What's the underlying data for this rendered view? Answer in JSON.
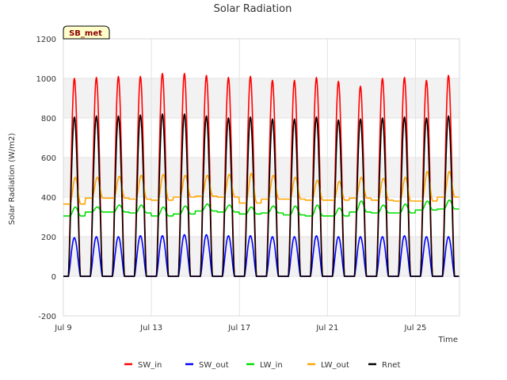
{
  "chart_data": {
    "type": "line",
    "title": "Solar Radiation",
    "xlabel": "Time",
    "ylabel": "Solar Radiation (W/m2)",
    "badge": "SB_met",
    "x_unit": "day of July",
    "xlim": [
      9.0,
      27.0
    ],
    "ylim": [
      -200,
      1200
    ],
    "yticks": [
      -200,
      0,
      200,
      400,
      600,
      800,
      1000,
      1200
    ],
    "xticks": [
      {
        "value": 9,
        "label": "Jul 9"
      },
      {
        "value": 13,
        "label": "Jul 13"
      },
      {
        "value": 17,
        "label": "Jul 17"
      },
      {
        "value": 21,
        "label": "Jul 21"
      },
      {
        "value": 25,
        "label": "Jul 25"
      }
    ],
    "grid": true,
    "background_bands": true,
    "legend_position": "bottom",
    "days": [
      "Jul 9",
      "Jul 10",
      "Jul 11",
      "Jul 12",
      "Jul 13",
      "Jul 14",
      "Jul 15",
      "Jul 16",
      "Jul 17",
      "Jul 18",
      "Jul 19",
      "Jul 20",
      "Jul 21",
      "Jul 22",
      "Jul 23",
      "Jul 24",
      "Jul 25",
      "Jul 26"
    ],
    "diurnal_pattern": {
      "sunrise_hour": 5.5,
      "sunset_hour": 18.5,
      "solar_noon_hour": 12.0,
      "night_value": 0
    },
    "series": [
      {
        "name": "SW_in",
        "color": "#ff0000",
        "kind": "diurnal",
        "daily_peak": [
          1000,
          1005,
          1010,
          1010,
          1025,
          1025,
          1015,
          1005,
          1010,
          990,
          990,
          1005,
          985,
          960,
          1000,
          1005,
          990,
          1015
        ]
      },
      {
        "name": "SW_out",
        "color": "#0000ff",
        "kind": "diurnal",
        "daily_peak": [
          195,
          200,
          200,
          205,
          205,
          210,
          210,
          205,
          205,
          200,
          200,
          205,
          200,
          200,
          200,
          205,
          200,
          200
        ]
      },
      {
        "name": "LW_in",
        "color": "#00dd00",
        "kind": "continuous",
        "daily_min": [
          305,
          325,
          325,
          320,
          305,
          315,
          330,
          325,
          315,
          320,
          310,
          305,
          305,
          325,
          320,
          320,
          335,
          340
        ],
        "daily_max": [
          350,
          350,
          360,
          360,
          350,
          355,
          365,
          360,
          350,
          355,
          355,
          360,
          345,
          380,
          360,
          365,
          380,
          385
        ]
      },
      {
        "name": "LW_out",
        "color": "#ffa500",
        "kind": "continuous",
        "daily_min": [
          365,
          395,
          395,
          390,
          385,
          400,
          405,
          400,
          370,
          390,
          390,
          385,
          385,
          395,
          385,
          380,
          380,
          400
        ],
        "daily_max": [
          500,
          500,
          505,
          510,
          515,
          510,
          510,
          515,
          520,
          510,
          500,
          485,
          480,
          500,
          495,
          500,
          530,
          530
        ]
      },
      {
        "name": "Rnet",
        "color": "#000000",
        "kind": "diurnal",
        "daily_peak": [
          805,
          810,
          810,
          815,
          820,
          820,
          810,
          800,
          805,
          795,
          795,
          805,
          790,
          795,
          800,
          805,
          800,
          810
        ]
      }
    ]
  }
}
